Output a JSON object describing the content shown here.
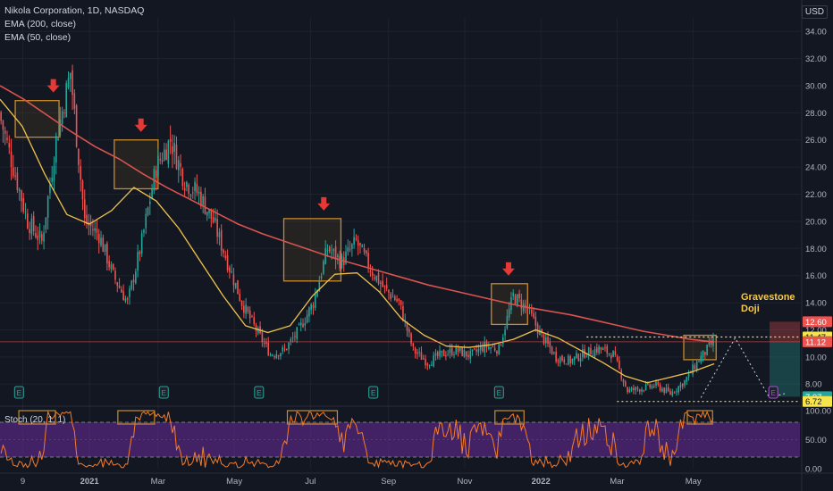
{
  "legend": {
    "title": "Nikola Corporation, 1D, NASDAQ",
    "ema200": "EMA (200, close)",
    "ema50": "EMA (50, close)",
    "stoch": "Stoch (20, 1, 1)"
  },
  "currency": "USD",
  "annotation": {
    "line1": "Gravestone",
    "line2": "Doji"
  },
  "colors": {
    "background": "#131722",
    "grid": "#1e222d",
    "up": "#26a69a",
    "down": "#ef5350",
    "ema200": "#d9534f",
    "ema50": "#f0c24b",
    "stochLine": "#f57c2a",
    "stochBand": "#6a2b9a",
    "box": "#c98a2b",
    "arrow": "#e53935",
    "dotted": "#f7e34b"
  },
  "chart_data": {
    "type": "candlestick",
    "title": "Nikola Corporation, 1D, NASDAQ",
    "yAxisTicks": [
      "34.00",
      "32.00",
      "30.00",
      "28.00",
      "26.00",
      "24.00",
      "22.00",
      "20.00",
      "18.00",
      "16.00",
      "14.00",
      "12.00",
      "10.00",
      "8.00"
    ],
    "xAxisTicks": [
      "9",
      "2021",
      "Mar",
      "May",
      "Jul",
      "Sep",
      "Nov",
      "2022",
      "Mar",
      "May"
    ],
    "ylim": [
      6.7,
      35
    ],
    "priceLabels": [
      {
        "text": "12.60",
        "value": 12.6,
        "color": "#ef5350"
      },
      {
        "text": "11.47",
        "value": 11.47,
        "color": "#f7e34b"
      },
      {
        "text": "11.13",
        "value": 11.13,
        "color": "#363a45"
      },
      {
        "text": "11.12",
        "value": 11.12,
        "color": "#ef5350"
      },
      {
        "text": "7.07",
        "value": 7.07,
        "color": "#26a69a"
      },
      {
        "text": "6.72",
        "value": 6.72,
        "color": "#f7e34b"
      }
    ],
    "anchors": [
      {
        "label": "Dec 9 2020",
        "price": 28
      },
      {
        "label": "Dec 2020",
        "price": 24
      },
      {
        "label": "Dec 2020",
        "price": 20
      },
      {
        "label": "Dec 2020",
        "price": 18.5
      },
      {
        "label": "Dec 2020",
        "price": 26
      },
      {
        "label": "Dec 2020",
        "price": 31
      },
      {
        "label": "Dec 2020",
        "price": 20
      },
      {
        "label": "Jan 2021",
        "price": 19
      },
      {
        "label": "Jan 2021",
        "price": 16
      },
      {
        "label": "Jan 2021",
        "price": 14
      },
      {
        "label": "Jan 2021",
        "price": 18.5
      },
      {
        "label": "Jan 2021",
        "price": 24
      },
      {
        "label": "Feb 2021",
        "price": 26
      },
      {
        "label": "Feb 2021",
        "price": 23
      },
      {
        "label": "Feb 2021",
        "price": 22
      },
      {
        "label": "Mar 2021",
        "price": 20
      },
      {
        "label": "Mar 2021",
        "price": 17
      },
      {
        "label": "Mar 2021",
        "price": 14
      },
      {
        "label": "Apr 2021",
        "price": 12
      },
      {
        "label": "Apr 2021",
        "price": 10.2
      },
      {
        "label": "May 2021",
        "price": 10.5
      },
      {
        "label": "May 2021",
        "price": 12
      },
      {
        "label": "Jun 2021",
        "price": 14
      },
      {
        "label": "Jun 2021",
        "price": 18
      },
      {
        "label": "Jun 2021",
        "price": 17
      },
      {
        "label": "Jun 2021",
        "price": 18.5
      },
      {
        "label": "Jul 2021",
        "price": 16.5
      },
      {
        "label": "Jul 2021",
        "price": 15
      },
      {
        "label": "Jul 2021",
        "price": 14
      },
      {
        "label": "Aug 2021",
        "price": 10.5
      },
      {
        "label": "Aug 2021",
        "price": 9.6
      },
      {
        "label": "Sep 2021",
        "price": 10.2
      },
      {
        "label": "Sep 2021",
        "price": 10.5
      },
      {
        "label": "Oct 2021",
        "price": 10.1
      },
      {
        "label": "Oct 2021",
        "price": 10.8
      },
      {
        "label": "Oct 2021",
        "price": 10.6
      },
      {
        "label": "Nov 2021",
        "price": 14.5
      },
      {
        "label": "Nov 2021",
        "price": 13.5
      },
      {
        "label": "Nov 2021",
        "price": 11.5
      },
      {
        "label": "Dec 2021",
        "price": 10
      },
      {
        "label": "Dec 2021",
        "price": 9.7
      },
      {
        "label": "Dec 2021",
        "price": 10.3
      },
      {
        "label": "Jan 2022",
        "price": 10.6
      },
      {
        "label": "Jan 2022",
        "price": 10.2
      },
      {
        "label": "Jan 2022",
        "price": 7.5
      },
      {
        "label": "Feb 2022",
        "price": 7.7
      },
      {
        "label": "Feb 2022",
        "price": 7.9
      },
      {
        "label": "Mar 2022",
        "price": 7.3
      },
      {
        "label": "Mar 2022",
        "price": 8.2
      },
      {
        "label": "Mar 2022",
        "price": 9.8
      },
      {
        "label": "Mar 2022",
        "price": 11.1
      }
    ],
    "ema200": [
      30,
      29,
      27.8,
      26.6,
      25.5,
      24.6,
      23.5,
      22.5,
      21.6,
      20.7,
      19.8,
      19.1,
      18.5,
      17.9,
      17.3,
      16.8,
      16.3,
      15.8,
      15.3,
      14.9,
      14.5,
      14.1,
      13.7,
      13.4,
      13.1,
      12.7,
      12.3,
      11.9,
      11.6,
      11.3,
      11.1
    ],
    "ema50": [
      29,
      27,
      23.5,
      20.5,
      19.8,
      20.8,
      22.5,
      21.5,
      19.5,
      17,
      14.5,
      12.3,
      11.8,
      12.3,
      14.5,
      16.1,
      16.2,
      14.8,
      12.8,
      11.6,
      10.8,
      10.7,
      10.9,
      11.3,
      12,
      11.4,
      10.5,
      9.6,
      8.6,
      8.1,
      8.5,
      8.9,
      9.5
    ],
    "stochTicks": [
      "100.00",
      "50.00",
      "0.00"
    ],
    "stochLevels": [
      80,
      20
    ],
    "highlightBoxes": [
      {
        "x0": 0.4,
        "x1": 1.55,
        "y0": 26.2,
        "y1": 28.9
      },
      {
        "x0": 3.0,
        "x1": 4.15,
        "y0": 22.4,
        "y1": 26.0
      },
      {
        "x0": 7.45,
        "x1": 8.95,
        "y0": 15.6,
        "y1": 20.2
      },
      {
        "x0": 12.9,
        "x1": 13.85,
        "y0": 12.4,
        "y1": 15.4
      },
      {
        "x0": 17.95,
        "x1": 18.8,
        "y0": 9.8,
        "y1": 11.6
      }
    ],
    "arrows": [
      1.4,
      3.7,
      8.5,
      13.35
    ],
    "earnings": [
      0.5,
      4.3,
      6.8,
      9.8,
      13.1
    ],
    "xRange": [
      0,
      21
    ]
  }
}
